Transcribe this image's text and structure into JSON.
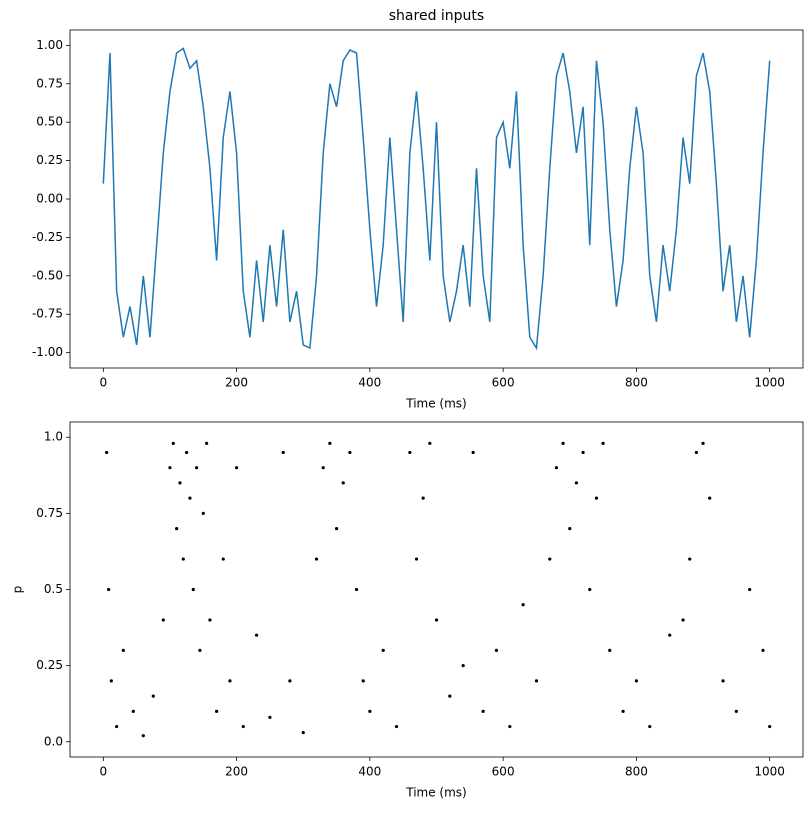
{
  "chart_data": [
    {
      "type": "line",
      "title": "shared inputs",
      "x_label": "Time (ms)",
      "color": "#1f77b4",
      "x": [
        0,
        10,
        20,
        30,
        40,
        50,
        60,
        70,
        80,
        90,
        100,
        110,
        120,
        130,
        140,
        150,
        160,
        170,
        180,
        190,
        200,
        210,
        220,
        230,
        240,
        250,
        260,
        270,
        280,
        290,
        300,
        310,
        320,
        330,
        340,
        350,
        360,
        370,
        380,
        390,
        400,
        410,
        420,
        430,
        440,
        450,
        460,
        470,
        480,
        490,
        500,
        510,
        520,
        530,
        540,
        550,
        560,
        570,
        580,
        590,
        600,
        610,
        620,
        630,
        640,
        650,
        660,
        670,
        680,
        690,
        700,
        710,
        720,
        730,
        740,
        750,
        760,
        770,
        780,
        790,
        800,
        810,
        820,
        830,
        840,
        850,
        860,
        870,
        880,
        890,
        900,
        910,
        920,
        930,
        940,
        950,
        960,
        970,
        980,
        990,
        1000
      ],
      "values": [
        0.1,
        0.95,
        -0.6,
        -0.9,
        -0.7,
        -0.95,
        -0.5,
        -0.9,
        -0.3,
        0.3,
        0.7,
        0.95,
        0.98,
        0.85,
        0.9,
        0.6,
        0.2,
        -0.4,
        0.4,
        0.7,
        0.3,
        -0.6,
        -0.9,
        -0.4,
        -0.8,
        -0.3,
        -0.7,
        -0.2,
        -0.8,
        -0.6,
        -0.95,
        -0.97,
        -0.5,
        0.3,
        0.75,
        0.6,
        0.9,
        0.97,
        0.95,
        0.4,
        -0.2,
        -0.7,
        -0.3,
        0.4,
        -0.2,
        -0.8,
        0.3,
        0.7,
        0.2,
        -0.4,
        0.5,
        -0.5,
        -0.8,
        -0.6,
        -0.3,
        -0.7,
        0.2,
        -0.5,
        -0.8,
        0.4,
        0.5,
        0.2,
        0.7,
        -0.3,
        -0.9,
        -0.97,
        -0.5,
        0.2,
        0.8,
        0.95,
        0.7,
        0.3,
        0.6,
        -0.3,
        0.9,
        0.5,
        -0.2,
        -0.7,
        -0.4,
        0.2,
        0.6,
        0.3,
        -0.5,
        -0.8,
        -0.3,
        -0.6,
        -0.2,
        0.4,
        0.1,
        0.8,
        0.95,
        0.7,
        0.1,
        -0.6,
        -0.3,
        -0.8,
        -0.5,
        -0.9,
        -0.4,
        0.3,
        0.9
      ],
      "xlim": [
        -50,
        1050
      ],
      "xticks": [
        0,
        200,
        400,
        600,
        800,
        1000
      ],
      "ylim": [
        -1.1,
        1.1
      ],
      "yticks": [
        {
          "value": -1,
          "label": "-1.00"
        },
        {
          "value": -0.75,
          "label": "-0.75"
        },
        {
          "value": -0.5,
          "label": "-0.50"
        },
        {
          "value": -0.25,
          "label": "-0.25"
        },
        {
          "value": 0,
          "label": "0.00"
        },
        {
          "value": 0.25,
          "label": "0.25"
        },
        {
          "value": 0.5,
          "label": "0.50"
        },
        {
          "value": 0.75,
          "label": "0.75"
        },
        {
          "value": 1,
          "label": "1.00"
        }
      ]
    },
    {
      "type": "scatter",
      "x_label": "Time (ms)",
      "y_label": "p",
      "color": "#000000",
      "x": [
        5,
        8,
        12,
        20,
        30,
        45,
        60,
        75,
        90,
        100,
        105,
        110,
        115,
        120,
        125,
        130,
        135,
        140,
        145,
        150,
        155,
        160,
        170,
        180,
        190,
        200,
        210,
        230,
        250,
        270,
        280,
        300,
        320,
        330,
        340,
        350,
        360,
        370,
        380,
        390,
        400,
        420,
        440,
        460,
        470,
        480,
        490,
        500,
        520,
        540,
        555,
        570,
        590,
        610,
        630,
        650,
        670,
        680,
        690,
        700,
        710,
        720,
        730,
        740,
        750,
        760,
        780,
        800,
        820,
        850,
        870,
        880,
        890,
        900,
        910,
        930,
        950,
        970,
        990,
        1000
      ],
      "values": [
        0.95,
        0.5,
        0.2,
        0.05,
        0.3,
        0.1,
        0.02,
        0.15,
        0.4,
        0.9,
        0.98,
        0.7,
        0.85,
        0.6,
        0.95,
        0.8,
        0.5,
        0.9,
        0.3,
        0.75,
        0.98,
        0.4,
        0.1,
        0.6,
        0.2,
        0.9,
        0.05,
        0.35,
        0.08,
        0.95,
        0.2,
        0.03,
        0.6,
        0.9,
        0.98,
        0.7,
        0.85,
        0.95,
        0.5,
        0.2,
        0.1,
        0.3,
        0.05,
        0.95,
        0.6,
        0.8,
        0.98,
        0.4,
        0.15,
        0.25,
        0.95,
        0.1,
        0.3,
        0.05,
        0.45,
        0.2,
        0.6,
        0.9,
        0.98,
        0.7,
        0.85,
        0.95,
        0.5,
        0.8,
        0.98,
        0.3,
        0.1,
        0.2,
        0.05,
        0.35,
        0.4,
        0.6,
        0.95,
        0.98,
        0.8,
        0.2,
        0.1,
        0.5,
        0.3,
        0.05
      ],
      "xlim": [
        -50,
        1050
      ],
      "xticks": [
        0,
        200,
        400,
        600,
        800,
        1000
      ],
      "ylim": [
        -0.05,
        1.05
      ],
      "yticks": [
        {
          "value": 0,
          "label": "0.0"
        },
        0.25,
        0.5,
        0.75,
        {
          "value": 1,
          "label": "1.0"
        }
      ]
    }
  ]
}
